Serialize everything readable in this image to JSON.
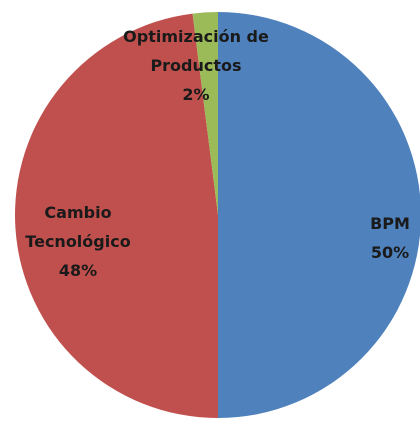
{
  "chart_data": {
    "type": "pie",
    "categories": [
      "BPM",
      "Cambio Tecnológico",
      "Optimización de Productos"
    ],
    "values": [
      50,
      48,
      2
    ],
    "value_labels": [
      "50%",
      "48%",
      "2%"
    ],
    "colors": [
      "#4f81bd",
      "#c0504d",
      "#9bbb59"
    ]
  }
}
